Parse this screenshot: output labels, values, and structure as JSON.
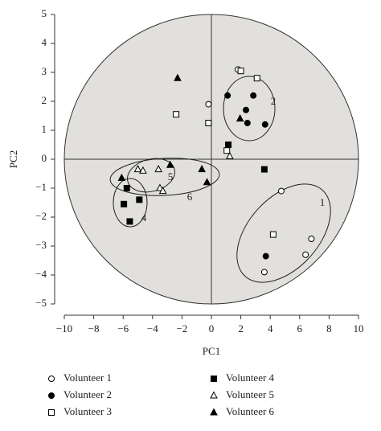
{
  "chart_data": {
    "type": "scatter",
    "x_label": "PC1",
    "y_label": "PC2",
    "xlim": [
      -10,
      10
    ],
    "ylim": [
      -5,
      5
    ],
    "xticks": [
      {
        "value": -10,
        "label": "−10"
      },
      {
        "value": -8,
        "label": "−8"
      },
      {
        "value": -6,
        "label": "−6"
      },
      {
        "value": -4,
        "label": "−4"
      },
      {
        "value": -2,
        "label": "−2"
      },
      0,
      2,
      4,
      6,
      8,
      10
    ],
    "yticks": [
      {
        "value": -5,
        "label": "−5"
      },
      {
        "value": -4,
        "label": "−4"
      },
      {
        "value": -3,
        "label": "−3"
      },
      {
        "value": -2,
        "label": "−2"
      },
      {
        "value": -1,
        "label": "−1"
      },
      0,
      1,
      2,
      3,
      4,
      5
    ],
    "annotations": [
      "1",
      "2",
      "4",
      "5",
      "6"
    ],
    "series": [
      {
        "name": "Volunteer 1",
        "color": "#000000",
        "marker": "circle",
        "filled": false,
        "x": [
          1.8,
          -0.2,
          4.75,
          6.8,
          6.4,
          3.6
        ],
        "values": [
          3.1,
          1.9,
          -1.1,
          -2.75,
          -3.3,
          -3.9
        ]
      },
      {
        "name": "Volunteer 2",
        "color": "#000000",
        "marker": "circle",
        "filled": true,
        "x": [
          1.1,
          2.85,
          2.35,
          2.45,
          3.65,
          3.7
        ],
        "values": [
          2.2,
          2.2,
          1.7,
          1.25,
          1.2,
          -3.35
        ]
      },
      {
        "name": "Volunteer 3",
        "color": "#000000",
        "marker": "square",
        "filled": false,
        "x": [
          2.0,
          3.1,
          -2.4,
          -0.2,
          1.05,
          4.2
        ],
        "values": [
          3.05,
          2.8,
          1.55,
          1.25,
          0.3,
          -2.6
        ]
      },
      {
        "name": "Volunteer 4",
        "color": "#000000",
        "marker": "square",
        "filled": true,
        "x": [
          1.15,
          3.6,
          -5.75,
          -4.9,
          -5.95,
          -5.55
        ],
        "values": [
          0.5,
          -0.35,
          -1.0,
          -1.4,
          -1.55,
          -2.15
        ]
      },
      {
        "name": "Volunteer 5",
        "color": "#000000",
        "marker": "triangle",
        "filled": false,
        "x": [
          1.25,
          -5.0,
          -4.65,
          -3.6,
          -3.5,
          -3.3
        ],
        "values": [
          0.1,
          -0.35,
          -0.4,
          -0.35,
          -1.0,
          -1.1
        ]
      },
      {
        "name": "Volunteer 6",
        "color": "#000000",
        "marker": "triangle",
        "filled": true,
        "x": [
          -2.3,
          1.95,
          -2.8,
          -0.65,
          -0.3,
          -6.1
        ],
        "values": [
          2.8,
          1.4,
          -0.2,
          -0.35,
          -0.8,
          -0.65
        ]
      }
    ]
  }
}
